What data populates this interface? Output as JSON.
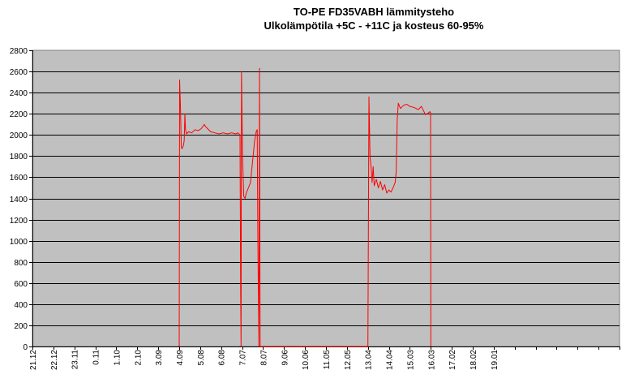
{
  "chart_data": {
    "type": "line",
    "title": "TO-PE FD35VABH lämmitysteho",
    "subtitle": "Ulkolämpötila  +5C - +11C ja kosteus 60-95%",
    "xlabel": "",
    "ylabel": "",
    "ylim": [
      0,
      2800
    ],
    "y_ticks": [
      "0",
      "200",
      "400",
      "600",
      "800",
      "1000",
      "1200",
      "1400",
      "1600",
      "1800",
      "2000",
      "2200",
      "2400",
      "2600",
      "2800"
    ],
    "x_ticks": [
      "21.12",
      "22.12",
      "23.11",
      "0.11",
      "1.10",
      "2.10",
      "3.09",
      "4.09",
      "5.08",
      "6.08",
      "7.07",
      "8.07",
      "9.06",
      "10.06",
      "11.05",
      "12.05",
      "13.04",
      "14.04",
      "15.03",
      "16.03",
      "17.02",
      "18.02",
      "19.01"
    ],
    "grid": true,
    "legend": "none",
    "colors": {
      "plot_background": "#c0c0c0",
      "series": "#ff0000",
      "gridline": "#000000"
    },
    "series": [
      {
        "values": [
          [
            7,
            0
          ],
          [
            7.02,
            2520
          ],
          [
            7.06,
            2250
          ],
          [
            7.08,
            2050
          ],
          [
            7.1,
            1880
          ],
          [
            7.14,
            1870
          ],
          [
            7.2,
            1900
          ],
          [
            7.24,
            1950
          ],
          [
            7.27,
            2200
          ],
          [
            7.3,
            2050
          ],
          [
            7.35,
            2010
          ],
          [
            7.45,
            2030
          ],
          [
            7.6,
            2020
          ],
          [
            7.75,
            2050
          ],
          [
            7.9,
            2040
          ],
          [
            8.05,
            2060
          ],
          [
            8.2,
            2100
          ],
          [
            8.25,
            2080
          ],
          [
            8.35,
            2060
          ],
          [
            8.5,
            2030
          ],
          [
            8.7,
            2020
          ],
          [
            8.9,
            2010
          ],
          [
            9.1,
            2020
          ],
          [
            9.3,
            2010
          ],
          [
            9.5,
            2020
          ],
          [
            9.7,
            2010
          ],
          [
            9.8,
            2020
          ],
          [
            9.9,
            2000
          ],
          [
            9.93,
            500
          ],
          [
            9.95,
            0
          ],
          [
            9.97,
            2600
          ],
          [
            10.02,
            1800
          ],
          [
            10.08,
            1420
          ],
          [
            10.14,
            1400
          ],
          [
            10.2,
            1450
          ],
          [
            10.3,
            1500
          ],
          [
            10.4,
            1550
          ],
          [
            10.5,
            1750
          ],
          [
            10.6,
            1950
          ],
          [
            10.68,
            2040
          ],
          [
            10.72,
            2050
          ],
          [
            10.75,
            1000
          ],
          [
            10.8,
            0
          ],
          [
            10.83,
            2630
          ],
          [
            10.86,
            0
          ],
          [
            16,
            0
          ],
          [
            16.05,
            2360
          ],
          [
            16.1,
            1800
          ],
          [
            16.15,
            1700
          ],
          [
            16.2,
            1550
          ],
          [
            16.25,
            1700
          ],
          [
            16.3,
            1520
          ],
          [
            16.4,
            1580
          ],
          [
            16.5,
            1500
          ],
          [
            16.6,
            1560
          ],
          [
            16.7,
            1480
          ],
          [
            16.8,
            1530
          ],
          [
            16.9,
            1450
          ],
          [
            17.0,
            1480
          ],
          [
            17.1,
            1460
          ],
          [
            17.2,
            1500
          ],
          [
            17.3,
            1550
          ],
          [
            17.35,
            1650
          ],
          [
            17.4,
            2150
          ],
          [
            17.45,
            2300
          ],
          [
            17.55,
            2250
          ],
          [
            17.7,
            2280
          ],
          [
            17.85,
            2290
          ],
          [
            18.0,
            2270
          ],
          [
            18.2,
            2260
          ],
          [
            18.4,
            2240
          ],
          [
            18.55,
            2270
          ],
          [
            18.65,
            2230
          ],
          [
            18.75,
            2190
          ],
          [
            18.9,
            2210
          ],
          [
            18.95,
            2220
          ],
          [
            18.99,
            2210
          ],
          [
            19.0,
            0
          ]
        ]
      }
    ]
  }
}
